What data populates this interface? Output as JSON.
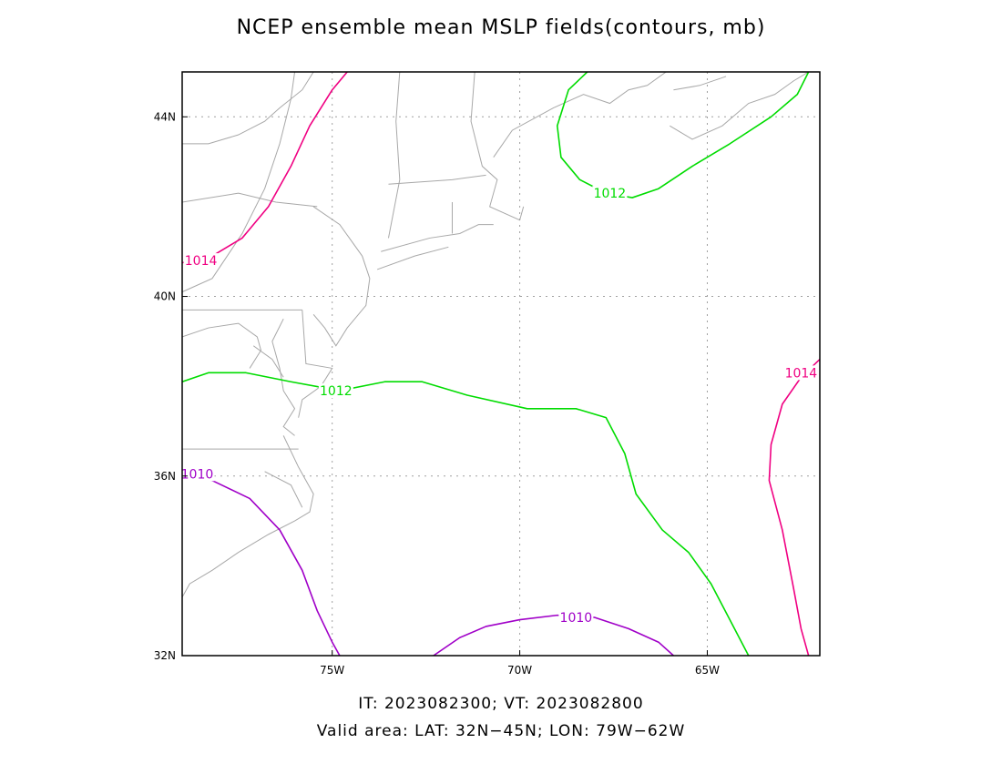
{
  "title": "NCEP ensemble mean MSLP fields(contours, mb)",
  "footer": {
    "line1": "IT: 2023082300; VT: 2023082800",
    "line2": "Valid area: LAT: 32N−45N; LON: 79W−62W"
  },
  "axes": {
    "lon_range": [
      -79,
      -62
    ],
    "lat_range": [
      32,
      45
    ],
    "lon_ticks": [
      {
        "value": -75,
        "label": "75W"
      },
      {
        "value": -70,
        "label": "70W"
      },
      {
        "value": -65,
        "label": "65W"
      }
    ],
    "lat_ticks": [
      {
        "value": 32,
        "label": "32N"
      },
      {
        "value": 36,
        "label": "36N"
      },
      {
        "value": 40,
        "label": "40N"
      },
      {
        "value": 44,
        "label": "44N"
      }
    ],
    "grid": true
  },
  "colors": {
    "c1010": "#a000c8",
    "c1012": "#00dc00",
    "c1014": "#f00082",
    "coast": "#a8a8a8",
    "grid": "#a0a0a0"
  },
  "contours": [
    {
      "level": "1014",
      "color": "#f00082",
      "points": [
        [
          -79,
          40.75
        ],
        [
          -78.2,
          40.9
        ],
        [
          -77.4,
          41.3
        ],
        [
          -76.7,
          42.0
        ],
        [
          -76.1,
          42.9
        ],
        [
          -75.6,
          43.8
        ],
        [
          -75.0,
          44.6
        ],
        [
          -74.6,
          45.0
        ]
      ],
      "label_at": [
        -78.5,
        40.8
      ]
    },
    {
      "level": "1014",
      "color": "#f00082",
      "points": [
        [
          -62,
          38.6
        ],
        [
          -62.5,
          38.2
        ],
        [
          -63.0,
          37.6
        ],
        [
          -63.3,
          36.7
        ],
        [
          -63.35,
          35.9
        ],
        [
          -63.0,
          34.8
        ],
        [
          -62.7,
          33.5
        ],
        [
          -62.5,
          32.6
        ],
        [
          -62.3,
          32.0
        ]
      ],
      "label_at": [
        -62.5,
        38.3
      ]
    },
    {
      "level": "1012",
      "color": "#00dc00",
      "points": [
        [
          -79,
          38.1
        ],
        [
          -78.3,
          38.3
        ],
        [
          -77.3,
          38.3
        ],
        [
          -76.1,
          38.1
        ],
        [
          -74.8,
          37.9
        ],
        [
          -73.6,
          38.1
        ],
        [
          -72.6,
          38.1
        ],
        [
          -71.4,
          37.8
        ],
        [
          -69.8,
          37.5
        ],
        [
          -68.5,
          37.5
        ],
        [
          -67.7,
          37.3
        ],
        [
          -67.2,
          36.5
        ],
        [
          -66.9,
          35.6
        ],
        [
          -66.2,
          34.8
        ],
        [
          -65.5,
          34.3
        ],
        [
          -64.9,
          33.6
        ],
        [
          -64.4,
          32.8
        ],
        [
          -63.9,
          32.0
        ]
      ],
      "label_at": [
        -74.9,
        37.9
      ]
    },
    {
      "level": "1012",
      "color": "#00dc00",
      "points": [
        [
          -68.2,
          45.0
        ],
        [
          -68.7,
          44.6
        ],
        [
          -69.0,
          43.8
        ],
        [
          -68.9,
          43.1
        ],
        [
          -68.4,
          42.6
        ],
        [
          -67.7,
          42.3
        ],
        [
          -67.0,
          42.2
        ],
        [
          -66.3,
          42.4
        ],
        [
          -65.4,
          42.9
        ],
        [
          -64.4,
          43.4
        ],
        [
          -63.3,
          44.0
        ],
        [
          -62.6,
          44.5
        ],
        [
          -62.3,
          45.0
        ]
      ],
      "label_at": [
        -67.6,
        42.3
      ]
    },
    {
      "level": "1010",
      "color": "#a000c8",
      "points": [
        [
          -79,
          36.1
        ],
        [
          -78.2,
          35.9
        ],
        [
          -77.2,
          35.5
        ],
        [
          -76.4,
          34.8
        ],
        [
          -75.8,
          33.9
        ],
        [
          -75.4,
          33.0
        ],
        [
          -75.0,
          32.3
        ],
        [
          -74.8,
          32.0
        ]
      ],
      "label_at": [
        -78.6,
        36.05
      ]
    },
    {
      "level": "1010",
      "color": "#a000c8",
      "points": [
        [
          -72.3,
          32.0
        ],
        [
          -71.6,
          32.4
        ],
        [
          -70.9,
          32.65
        ],
        [
          -70.0,
          32.8
        ],
        [
          -69.0,
          32.9
        ],
        [
          -68.0,
          32.85
        ],
        [
          -67.1,
          32.6
        ],
        [
          -66.3,
          32.3
        ],
        [
          -65.9,
          32.0
        ]
      ],
      "label_at": [
        -68.5,
        32.85
      ]
    }
  ],
  "coastlines": [
    [
      [
        -79,
        40.1
      ],
      [
        -78.2,
        40.4
      ],
      [
        -77.4,
        41.4
      ],
      [
        -76.8,
        42.4
      ],
      [
        -76.4,
        43.4
      ],
      [
        -76.1,
        44.4
      ],
      [
        -76.0,
        45.0
      ]
    ],
    [
      [
        -79,
        43.4
      ],
      [
        -78.3,
        43.4
      ],
      [
        -77.5,
        43.6
      ],
      [
        -76.8,
        43.9
      ],
      [
        -76.4,
        44.2
      ],
      [
        -75.8,
        44.6
      ],
      [
        -75.5,
        45.0
      ]
    ],
    [
      [
        -79,
        42.1
      ],
      [
        -77.5,
        42.3
      ],
      [
        -76.5,
        42.1
      ],
      [
        -75.4,
        42.0
      ]
    ],
    [
      [
        -73.2,
        45.0
      ],
      [
        -73.3,
        43.9
      ],
      [
        -73.2,
        42.6
      ],
      [
        -73.5,
        41.3
      ]
    ],
    [
      [
        -71.2,
        45.0
      ],
      [
        -71.3,
        43.9
      ],
      [
        -71.0,
        42.9
      ],
      [
        -70.6,
        42.6
      ],
      [
        -70.8,
        42.0
      ],
      [
        -70.0,
        41.7
      ],
      [
        -69.9,
        42.0
      ]
    ],
    [
      [
        -73.5,
        42.5
      ],
      [
        -71.8,
        42.6
      ],
      [
        -70.9,
        42.7
      ]
    ],
    [
      [
        -71.8,
        42.1
      ],
      [
        -71.8,
        41.4
      ]
    ],
    [
      [
        -73.7,
        41.0
      ],
      [
        -72.4,
        41.3
      ],
      [
        -71.6,
        41.4
      ],
      [
        -71.1,
        41.6
      ],
      [
        -70.7,
        41.6
      ]
    ],
    [
      [
        -73.8,
        40.6
      ],
      [
        -72.8,
        40.9
      ],
      [
        -71.9,
        41.1
      ]
    ],
    [
      [
        -75.5,
        42.0
      ],
      [
        -74.8,
        41.6
      ],
      [
        -74.2,
        40.9
      ],
      [
        -74.0,
        40.4
      ],
      [
        -74.1,
        39.8
      ],
      [
        -74.6,
        39.3
      ],
      [
        -74.9,
        38.9
      ],
      [
        -75.2,
        39.3
      ],
      [
        -75.5,
        39.6
      ]
    ],
    [
      [
        -79,
        39.7
      ],
      [
        -75.8,
        39.7
      ]
    ],
    [
      [
        -75.8,
        39.7
      ],
      [
        -75.7,
        38.5
      ],
      [
        -75.0,
        38.4
      ],
      [
        -75.3,
        38.0
      ],
      [
        -75.8,
        37.7
      ],
      [
        -75.9,
        37.3
      ]
    ],
    [
      [
        -76.3,
        39.5
      ],
      [
        -76.6,
        39.0
      ],
      [
        -76.4,
        38.4
      ],
      [
        -76.3,
        37.9
      ],
      [
        -76.0,
        37.5
      ],
      [
        -76.3,
        37.1
      ],
      [
        -76.0,
        36.9
      ]
    ],
    [
      [
        -79,
        39.1
      ],
      [
        -78.3,
        39.3
      ],
      [
        -77.5,
        39.4
      ],
      [
        -77.0,
        39.1
      ],
      [
        -76.9,
        38.8
      ],
      [
        -77.2,
        38.4
      ]
    ],
    [
      [
        -77.1,
        38.9
      ],
      [
        -76.6,
        38.6
      ],
      [
        -76.3,
        38.2
      ]
    ],
    [
      [
        -79,
        36.6
      ],
      [
        -75.9,
        36.6
      ]
    ],
    [
      [
        -76.3,
        36.9
      ],
      [
        -75.9,
        36.2
      ],
      [
        -75.5,
        35.6
      ],
      [
        -75.6,
        35.2
      ],
      [
        -76.0,
        35.0
      ],
      [
        -76.7,
        34.7
      ],
      [
        -77.5,
        34.3
      ],
      [
        -78.2,
        33.9
      ],
      [
        -78.8,
        33.6
      ],
      [
        -79,
        33.3
      ]
    ],
    [
      [
        -76.8,
        36.1
      ],
      [
        -76.1,
        35.8
      ],
      [
        -75.8,
        35.3
      ]
    ],
    [
      [
        -66.1,
        45.0
      ],
      [
        -66.6,
        44.7
      ],
      [
        -67.1,
        44.6
      ],
      [
        -67.6,
        44.3
      ],
      [
        -68.3,
        44.5
      ],
      [
        -69.1,
        44.2
      ],
      [
        -70.2,
        43.7
      ],
      [
        -70.7,
        43.1
      ]
    ],
    [
      [
        -65.9,
        44.6
      ],
      [
        -65.2,
        44.7
      ],
      [
        -64.5,
        44.9
      ]
    ],
    [
      [
        -66.0,
        43.8
      ],
      [
        -65.4,
        43.5
      ],
      [
        -64.6,
        43.8
      ],
      [
        -63.9,
        44.3
      ],
      [
        -63.2,
        44.5
      ],
      [
        -62.7,
        44.8
      ],
      [
        -62.3,
        45.0
      ]
    ]
  ],
  "legend": []
}
